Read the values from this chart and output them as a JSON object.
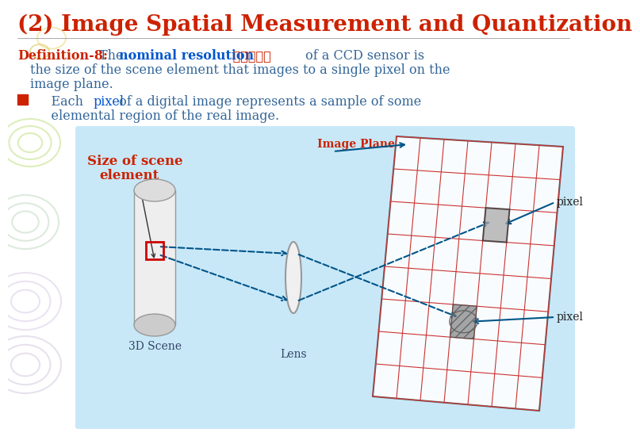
{
  "title": "(2) Image Spatial Measurement and Quantization",
  "title_color": "#CC2200",
  "title_fontsize": 20,
  "bg_color": "#FFFFFF",
  "def_label": "Definition-8:",
  "def_label_color": "#CC2200",
  "def_bold": "nominal resolution",
  "def_bold_color": "#0055CC",
  "def_chinese": "标称分辨度",
  "def_chinese_color": "#CC2200",
  "def_text_color": "#336699",
  "bullet_color": "#CC2200",
  "bullet_pixel_color": "#0055CC",
  "diagram_bg": "#C8E8F8",
  "scene_label_color": "#CC2200",
  "plane_label_color": "#CC2200",
  "arrow_color": "#005588",
  "grid_color": "#CC3333",
  "label_color": "#334466",
  "pixel_label_color": "#222222"
}
